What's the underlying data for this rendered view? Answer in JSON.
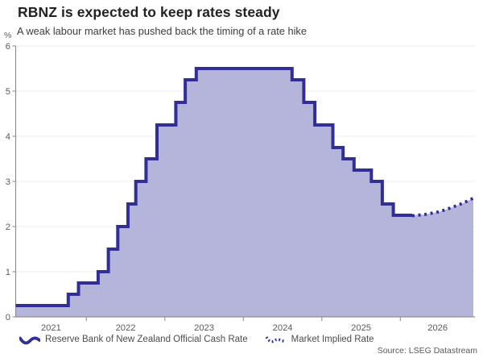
{
  "header": {
    "title": "RBNZ is expected to keep rates steady",
    "subtitle": "A weak labour market has pushed back the timing of a rate hike"
  },
  "chart_data": {
    "type": "area",
    "title": "RBNZ is expected to keep rates steady",
    "subtitle": "A weak labour market has pushed back the timing of a rate hike",
    "ylabel": "%",
    "xlabel": "",
    "ylim": [
      0,
      6
    ],
    "xlim": [
      2021.1,
      2026.95
    ],
    "y_ticks": [
      0,
      1,
      2,
      3,
      4,
      5,
      6
    ],
    "x_year_labels": [
      "2021",
      "2022",
      "2023",
      "2024",
      "2025",
      "2026"
    ],
    "grid": "horizontal-light",
    "legend_position": "bottom",
    "colors": {
      "line": "#312e96",
      "fill": "#b5b4da",
      "grid": "#ededed",
      "axis": "#8f8f8f",
      "tick_text": "#595959"
    },
    "series": [
      {
        "name": "Reserve Bank of New Zealand Official Cash Rate",
        "type": "step-line",
        "style": "solid",
        "changes": [
          [
            2021.1,
            0.25
          ],
          [
            2021.77,
            0.5
          ],
          [
            2021.9,
            0.75
          ],
          [
            2022.15,
            1.0
          ],
          [
            2022.28,
            1.5
          ],
          [
            2022.4,
            2.0
          ],
          [
            2022.53,
            2.5
          ],
          [
            2022.63,
            3.0
          ],
          [
            2022.76,
            3.5
          ],
          [
            2022.9,
            4.25
          ],
          [
            2023.14,
            4.75
          ],
          [
            2023.26,
            5.25
          ],
          [
            2023.4,
            5.5
          ],
          [
            2024.62,
            5.25
          ],
          [
            2024.77,
            4.75
          ],
          [
            2024.91,
            4.25
          ],
          [
            2025.14,
            3.75
          ],
          [
            2025.27,
            3.5
          ],
          [
            2025.41,
            3.25
          ],
          [
            2025.63,
            3.0
          ],
          [
            2025.77,
            2.5
          ],
          [
            2025.91,
            2.25
          ]
        ],
        "end_x": 2026.15
      },
      {
        "name": "Market Implied Rate",
        "type": "line",
        "style": "dotted",
        "points": [
          [
            2026.15,
            2.24
          ],
          [
            2026.32,
            2.27
          ],
          [
            2026.5,
            2.33
          ],
          [
            2026.65,
            2.42
          ],
          [
            2026.8,
            2.52
          ],
          [
            2026.93,
            2.63
          ]
        ]
      }
    ]
  },
  "source": "Source: LSEG Datastream"
}
